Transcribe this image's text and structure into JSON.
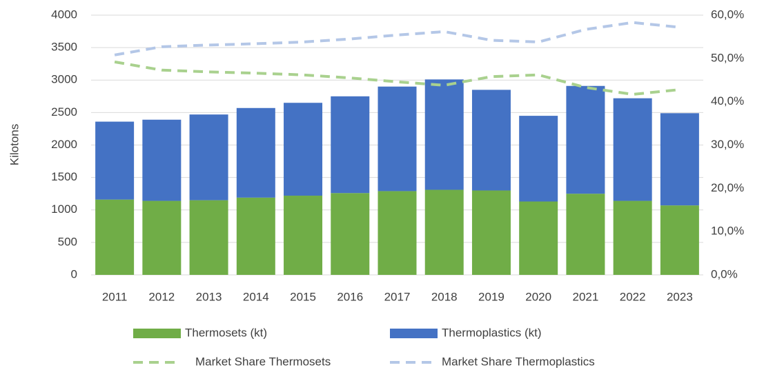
{
  "chart_data": {
    "type": "stacked_bar_line",
    "y_label": "Kilotons",
    "categories": [
      "2011",
      "2012",
      "2013",
      "2014",
      "2015",
      "2016",
      "2017",
      "2018",
      "2019",
      "2020",
      "2021",
      "2022",
      "2023"
    ],
    "series": [
      {
        "name": "Thermosets (kt)",
        "type": "bar",
        "color": "#70ad47",
        "values": [
          1160,
          1140,
          1150,
          1190,
          1220,
          1260,
          1290,
          1310,
          1300,
          1130,
          1250,
          1140,
          1070
        ]
      },
      {
        "name": "Thermoplastics (kt)",
        "type": "bar",
        "color": "#4472c4",
        "values": [
          1200,
          1250,
          1320,
          1380,
          1430,
          1490,
          1610,
          1700,
          1550,
          1320,
          1660,
          1580,
          1420
        ]
      },
      {
        "name": "Market Share Thermosets",
        "type": "line",
        "axis": "y2",
        "dashed": true,
        "color": "#a9d18e",
        "values": [
          49.2,
          47.3,
          46.9,
          46.6,
          46.2,
          45.5,
          44.6,
          43.8,
          45.8,
          46.2,
          43.3,
          41.7,
          42.8
        ]
      },
      {
        "name": "Market Share Thermoplastics",
        "type": "line",
        "axis": "y2",
        "dashed": true,
        "color": "#b4c7e7",
        "values": [
          50.8,
          52.7,
          53.1,
          53.4,
          53.8,
          54.5,
          55.4,
          56.2,
          54.2,
          53.8,
          56.7,
          58.3,
          57.2
        ]
      }
    ],
    "ylim": [
      0,
      4000
    ],
    "yticks": [
      0,
      500,
      1000,
      1500,
      2000,
      2500,
      3000,
      3500,
      4000
    ],
    "y2lim": [
      0,
      60
    ],
    "y2ticks": [
      {
        "value": 0,
        "label": "0,0%"
      },
      {
        "value": 10,
        "label": "10,0%"
      },
      {
        "value": 20,
        "label": "20,0%"
      },
      {
        "value": 30,
        "label": "30,0%"
      },
      {
        "value": 40,
        "label": "40,0%"
      },
      {
        "value": 50,
        "label": "50,0%"
      },
      {
        "value": 60,
        "label": "60,0%"
      }
    ],
    "grid": true,
    "legend": "bottom"
  }
}
